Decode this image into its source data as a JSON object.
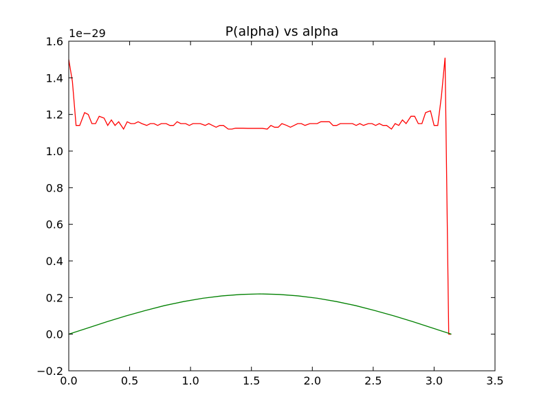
{
  "chart_data": {
    "type": "line",
    "title": "P(alpha) vs alpha",
    "xlabel": "",
    "ylabel": "",
    "y_offset_label": "1e−29",
    "xlim": [
      0.0,
      3.5
    ],
    "ylim": [
      -0.2,
      1.6
    ],
    "x_ticks": [
      0.0,
      0.5,
      1.0,
      1.5,
      2.0,
      2.5,
      3.0,
      3.5
    ],
    "x_tick_labels": [
      "0.0",
      "0.5",
      "1.0",
      "1.5",
      "2.0",
      "2.5",
      "3.0",
      "3.5"
    ],
    "y_ticks": [
      -0.2,
      0.0,
      0.2,
      0.4,
      0.6,
      0.8,
      1.0,
      1.2,
      1.4,
      1.6
    ],
    "y_tick_labels": [
      "−0.2",
      "0.0",
      "0.2",
      "0.4",
      "0.6",
      "0.8",
      "1.0",
      "1.2",
      "1.4",
      "1.6"
    ],
    "grid": false,
    "legend": "none",
    "series": [
      {
        "color": "#ff0000",
        "x": [
          0.0,
          0.03,
          0.06,
          0.09,
          0.13,
          0.16,
          0.19,
          0.22,
          0.25,
          0.29,
          0.32,
          0.35,
          0.38,
          0.41,
          0.45,
          0.48,
          0.51,
          0.54,
          0.57,
          0.6,
          0.64,
          0.67,
          0.7,
          0.73,
          0.76,
          0.8,
          0.83,
          0.86,
          0.89,
          0.92,
          0.96,
          0.99,
          1.02,
          1.05,
          1.08,
          1.12,
          1.15,
          1.18,
          1.21,
          1.24,
          1.27,
          1.31,
          1.34,
          1.37,
          1.4,
          1.43,
          1.47,
          1.5,
          1.53,
          1.56,
          1.59,
          1.63,
          1.66,
          1.69,
          1.72,
          1.75,
          1.79,
          1.82,
          1.85,
          1.88,
          1.91,
          1.94,
          1.98,
          2.01,
          2.04,
          2.07,
          2.1,
          2.14,
          2.17,
          2.2,
          2.23,
          2.26,
          2.3,
          2.33,
          2.36,
          2.39,
          2.42,
          2.46,
          2.49,
          2.52,
          2.55,
          2.58,
          2.61,
          2.65,
          2.68,
          2.71,
          2.74,
          2.77,
          2.81,
          2.84,
          2.87,
          2.9,
          2.93,
          2.97,
          3.0,
          3.03,
          3.06,
          3.09,
          3.12,
          3.14
        ],
        "y": [
          1.5,
          1.38,
          1.14,
          1.14,
          1.21,
          1.2,
          1.15,
          1.15,
          1.19,
          1.18,
          1.14,
          1.17,
          1.14,
          1.16,
          1.12,
          1.16,
          1.15,
          1.15,
          1.16,
          1.15,
          1.14,
          1.15,
          1.15,
          1.14,
          1.15,
          1.15,
          1.14,
          1.14,
          1.16,
          1.15,
          1.15,
          1.14,
          1.15,
          1.15,
          1.15,
          1.14,
          1.15,
          1.14,
          1.13,
          1.14,
          1.14,
          1.12,
          1.12,
          1.125,
          1.125,
          1.125,
          1.124,
          1.124,
          1.124,
          1.124,
          1.124,
          1.12,
          1.14,
          1.13,
          1.13,
          1.15,
          1.14,
          1.13,
          1.14,
          1.15,
          1.15,
          1.14,
          1.15,
          1.15,
          1.15,
          1.16,
          1.16,
          1.16,
          1.14,
          1.14,
          1.15,
          1.15,
          1.15,
          1.15,
          1.14,
          1.15,
          1.14,
          1.15,
          1.15,
          1.14,
          1.15,
          1.14,
          1.14,
          1.12,
          1.15,
          1.14,
          1.17,
          1.15,
          1.19,
          1.19,
          1.15,
          1.15,
          1.21,
          1.22,
          1.14,
          1.14,
          1.3,
          1.51,
          0.0,
          0.0
        ]
      },
      {
        "color": "#008000",
        "x": [
          0.0,
          0.157,
          0.314,
          0.471,
          0.628,
          0.785,
          0.942,
          1.1,
          1.257,
          1.414,
          1.571,
          1.728,
          1.885,
          2.042,
          2.199,
          2.356,
          2.513,
          2.67,
          2.827,
          2.985,
          3.142
        ],
        "y": [
          0.0,
          0.034,
          0.068,
          0.1,
          0.129,
          0.156,
          0.178,
          0.196,
          0.209,
          0.217,
          0.22,
          0.217,
          0.209,
          0.196,
          0.178,
          0.156,
          0.129,
          0.1,
          0.068,
          0.034,
          0.0
        ]
      }
    ]
  }
}
